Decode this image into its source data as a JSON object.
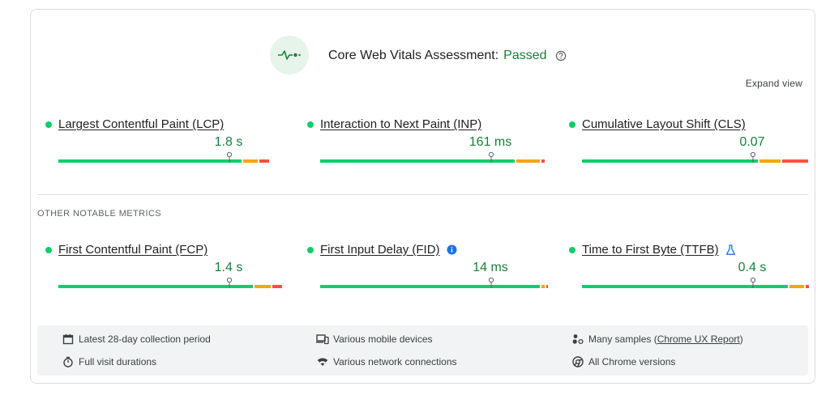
{
  "header": {
    "assessment_label": "Core Web Vitals Assessment:",
    "assessment_status": "Passed",
    "expand_view": "Expand view"
  },
  "colors": {
    "good": "#0cce6b",
    "needs_improvement": "#ffa400",
    "poor": "#ff4e42",
    "passed_text": "#188038"
  },
  "core_metrics": [
    {
      "name": "Largest Contentful Paint (LCP)",
      "value": "1.8 s",
      "marker_fraction": 0.75,
      "segments": [
        0.81,
        0.07,
        0.05
      ]
    },
    {
      "name": "Interaction to Next Paint (INP)",
      "value": "161 ms",
      "marker_fraction": 0.75,
      "segments": [
        0.86,
        0.11,
        0.02
      ]
    },
    {
      "name": "Cumulative Layout Shift (CLS)",
      "value": "0.07",
      "marker_fraction": 0.75,
      "segments": [
        0.78,
        0.1,
        0.12
      ]
    }
  ],
  "other_section_label": "OTHER NOTABLE METRICS",
  "other_metrics": [
    {
      "name": "First Contentful Paint (FCP)",
      "value": "1.4 s",
      "marker_fraction": 0.75,
      "segments": [
        0.86,
        0.08,
        0.05
      ],
      "icon": "info-icon"
    },
    {
      "name": "First Input Delay (FID)",
      "value": "14 ms",
      "marker_fraction": 0.75,
      "segments": [
        0.97,
        0.02,
        0.01
      ],
      "icon": "info-icon"
    },
    {
      "name": "Time to First Byte (TTFB)",
      "value": "0.4 s",
      "marker_fraction": 0.75,
      "segments": [
        0.91,
        0.07,
        0.02
      ],
      "icon": "flask-icon"
    }
  ],
  "footer": {
    "collection_period": "Latest 28-day collection period",
    "devices": "Various mobile devices",
    "samples_prefix": "Many samples (",
    "samples_link": "Chrome UX Report",
    "samples_suffix": ")",
    "durations": "Full visit durations",
    "connections": "Various network connections",
    "versions": "All Chrome versions"
  }
}
